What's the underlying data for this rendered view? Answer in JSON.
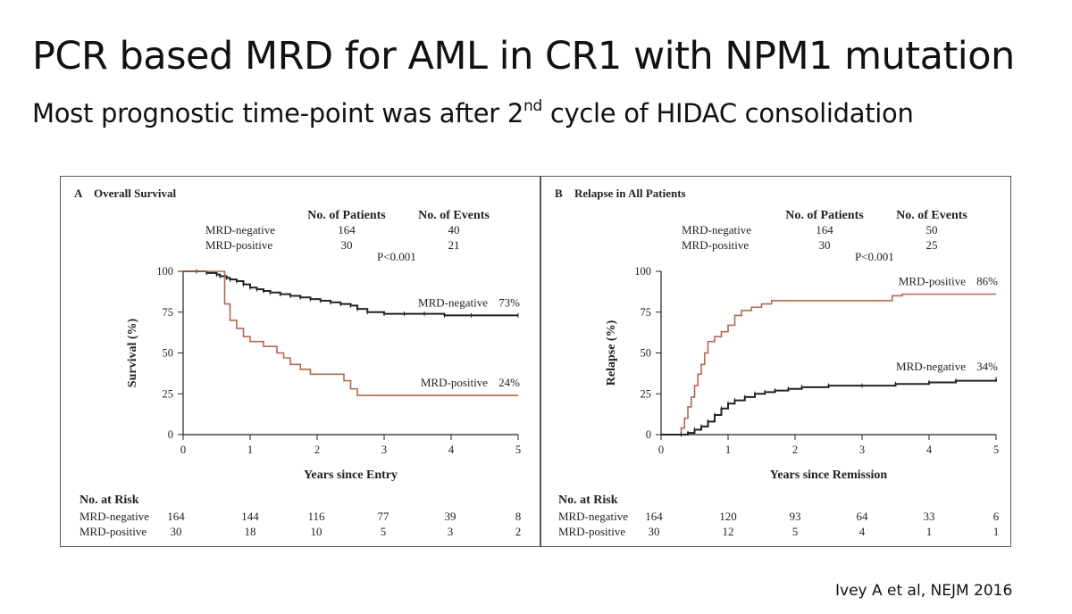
{
  "title": "PCR based MRD for AML in CR1 with NPM1 mutation",
  "subtitle": {
    "prefix": "Most prognostic time-point was after 2",
    "sup": "nd",
    "suffix": " cycle of HIDAC consolidation"
  },
  "citation": "Ivey A et al, NEJM 2016",
  "colors": {
    "negative": "#222222",
    "positive": "#b5674f",
    "frame": "#555555"
  },
  "chart_data": [
    {
      "type": "line",
      "panel_letter": "A",
      "title": "Overall Survival",
      "xlabel": "Years since Entry",
      "ylabel": "Survival (%)",
      "xlim": [
        0,
        5
      ],
      "ylim": [
        0,
        100
      ],
      "xticks": [
        "0",
        "1",
        "2",
        "3",
        "4",
        "5"
      ],
      "yticks": [
        "0",
        "25",
        "50",
        "75",
        "100"
      ],
      "grid": false,
      "patients_header": "No. of Patients",
      "events_header": "No. of Events",
      "groups": [
        {
          "name": "MRD-negative",
          "patients": "164",
          "events": "40"
        },
        {
          "name": "MRD-positive",
          "patients": "30",
          "events": "21"
        }
      ],
      "pvalue": "P<0.001",
      "series": [
        {
          "name": "MRD-negative",
          "end_label": "MRD-negative",
          "end_pct": "73%",
          "x": [
            0,
            0.2,
            0.35,
            0.5,
            0.55,
            0.65,
            0.7,
            0.8,
            0.9,
            1.0,
            1.1,
            1.2,
            1.3,
            1.45,
            1.6,
            1.75,
            1.9,
            2.05,
            2.2,
            2.35,
            2.5,
            2.6,
            2.75,
            3.0,
            3.3,
            3.6,
            3.9,
            4.3,
            5.0
          ],
          "values": [
            100,
            100,
            99,
            98,
            97,
            96,
            95,
            94,
            92,
            90,
            89,
            88,
            87,
            86,
            85,
            84,
            83,
            82,
            81,
            80,
            79,
            77,
            75,
            74,
            74,
            74,
            73,
            73,
            73
          ]
        },
        {
          "name": "MRD-positive",
          "end_label": "MRD-positive",
          "end_pct": "24%",
          "x": [
            0,
            0.55,
            0.62,
            0.7,
            0.8,
            0.9,
            1.0,
            1.2,
            1.4,
            1.5,
            1.6,
            1.75,
            1.9,
            2.4,
            2.5,
            2.6,
            5.0
          ],
          "values": [
            100,
            100,
            80,
            70,
            65,
            60,
            57,
            54,
            50,
            47,
            43,
            40,
            37,
            33,
            28,
            24,
            24
          ]
        }
      ],
      "risk_title": "No. at Risk",
      "risk_table": [
        {
          "label": "MRD-negative",
          "values": [
            "164",
            "144",
            "116",
            "77",
            "39",
            "8"
          ]
        },
        {
          "label": "MRD-positive",
          "values": [
            "30",
            "18",
            "10",
            "5",
            "3",
            "2"
          ]
        }
      ]
    },
    {
      "type": "line",
      "panel_letter": "B",
      "title": "Relapse in All Patients",
      "xlabel": "Years since Remission",
      "ylabel": "Relapse (%)",
      "xlim": [
        0,
        5
      ],
      "ylim": [
        0,
        100
      ],
      "xticks": [
        "0",
        "1",
        "2",
        "3",
        "4",
        "5"
      ],
      "yticks": [
        "0",
        "25",
        "50",
        "75",
        "100"
      ],
      "grid": false,
      "patients_header": "No. of Patients",
      "events_header": "No. of Events",
      "groups": [
        {
          "name": "MRD-negative",
          "patients": "164",
          "events": "50"
        },
        {
          "name": "MRD-positive",
          "patients": "30",
          "events": "25"
        }
      ],
      "pvalue": "P<0.001",
      "series": [
        {
          "name": "MRD-positive",
          "end_label": "MRD-positive",
          "end_pct": "86%",
          "x": [
            0,
            0.25,
            0.3,
            0.35,
            0.4,
            0.45,
            0.5,
            0.55,
            0.6,
            0.65,
            0.7,
            0.8,
            0.9,
            1.0,
            1.1,
            1.2,
            1.35,
            1.5,
            1.65,
            2.5,
            3.45,
            3.6,
            5.0
          ],
          "values": [
            0,
            0,
            4,
            10,
            17,
            23,
            30,
            37,
            43,
            50,
            57,
            60,
            63,
            67,
            73,
            76,
            78,
            80,
            82,
            82,
            85,
            86,
            86
          ]
        },
        {
          "name": "MRD-negative",
          "end_label": "MRD-negative",
          "end_pct": "34%",
          "x": [
            0,
            0.3,
            0.4,
            0.5,
            0.6,
            0.7,
            0.8,
            0.9,
            1.0,
            1.1,
            1.25,
            1.4,
            1.55,
            1.7,
            1.9,
            2.1,
            2.5,
            3.0,
            3.5,
            4.0,
            4.4,
            5.0
          ],
          "values": [
            0,
            0,
            1,
            3,
            5,
            8,
            12,
            16,
            19,
            21,
            23,
            25,
            26,
            27,
            28,
            29,
            30,
            30,
            31,
            32,
            33,
            34
          ]
        }
      ],
      "risk_title": "No. at Risk",
      "risk_table": [
        {
          "label": "MRD-negative",
          "values": [
            "164",
            "120",
            "93",
            "64",
            "33",
            "6"
          ]
        },
        {
          "label": "MRD-positive",
          "values": [
            "30",
            "12",
            "5",
            "4",
            "1",
            "1"
          ]
        }
      ]
    }
  ]
}
